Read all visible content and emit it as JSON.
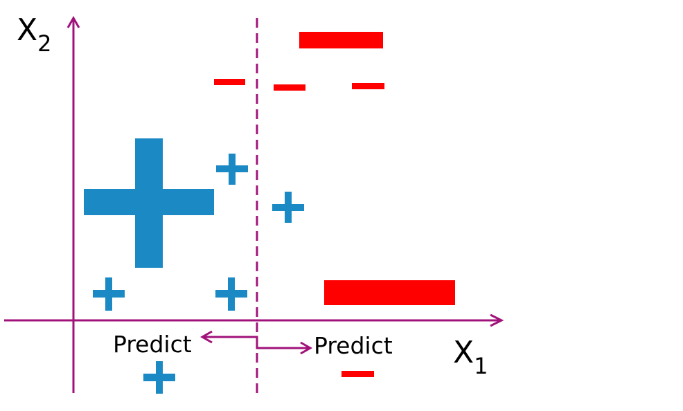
{
  "colors": {
    "axis": "#A0127A",
    "positive": "#1B8AC4",
    "negative": "#FF0000",
    "text": "#000000",
    "background": "#FFFFFF"
  },
  "axes": {
    "y_label_base": "X",
    "y_label_sub": "2",
    "x_label_base": "X",
    "x_label_sub": "1"
  },
  "split": {
    "style": "dashed",
    "left_label": "Predict",
    "right_label": "Predict"
  },
  "prediction_symbols": {
    "left": "positive",
    "right": "negative"
  },
  "legend_symbols": {
    "positive": "plus-icon",
    "negative": "minus-icon"
  }
}
